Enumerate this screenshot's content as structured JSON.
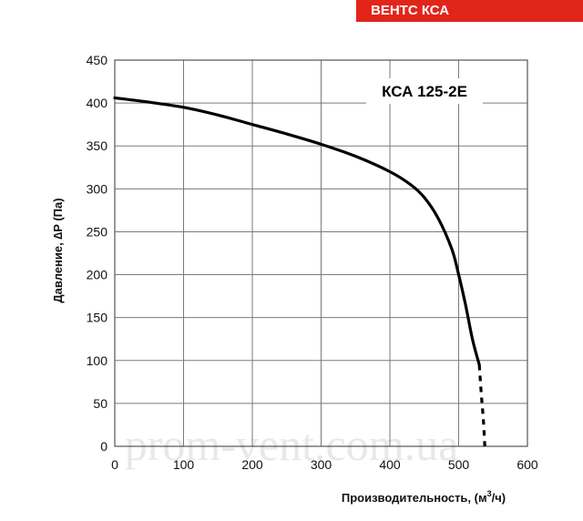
{
  "header": {
    "badge_label": "ВЕНТС КСА"
  },
  "watermark": "prom-vent.com.ua",
  "colors": {
    "badge": "#e1251b",
    "curve": "#000000",
    "grid": "#7a7a7a"
  },
  "chart_data": {
    "type": "line",
    "title": "",
    "model_label": "КСА 125-2Е",
    "xlabel_text": "Производительность, (м",
    "xlabel_sup": "3",
    "xlabel_end": "/ч)",
    "ylabel": "Давление, ∆P (Па)",
    "xlim": [
      0,
      600
    ],
    "ylim": [
      0,
      450
    ],
    "xticks": [
      0,
      100,
      200,
      300,
      400,
      500,
      600
    ],
    "yticks": [
      0,
      50,
      100,
      150,
      200,
      250,
      300,
      350,
      400,
      450
    ],
    "grid": true,
    "series": [
      {
        "style": "solid",
        "x": [
          0,
          50,
          100,
          150,
          200,
          250,
          300,
          350,
          400,
          430,
          450,
          470,
          490,
          500,
          510,
          520,
          530
        ],
        "y": [
          406,
          401,
          395,
          386,
          375,
          364,
          352,
          338,
          320,
          305,
          290,
          266,
          230,
          200,
          165,
          125,
          95
        ]
      },
      {
        "style": "dotted",
        "x": [
          530,
          533,
          536,
          538
        ],
        "y": [
          95,
          60,
          30,
          0
        ]
      }
    ]
  }
}
